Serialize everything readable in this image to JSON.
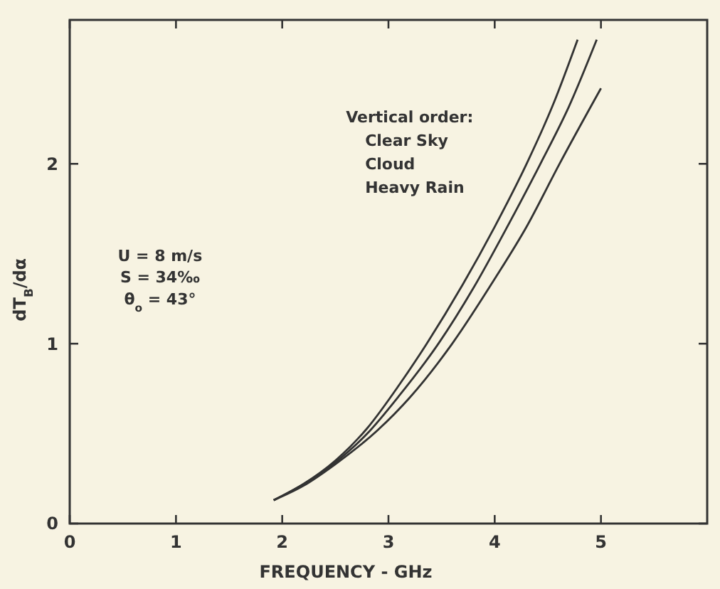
{
  "chart_data": {
    "type": "line",
    "xlabel": "FREQUENCY - GHz",
    "ylabel": "dT$_{B}$/dα",
    "xlim": [
      0,
      6
    ],
    "ylim": [
      0,
      2.8
    ],
    "xticks": [
      0,
      1,
      2,
      3,
      4,
      5
    ],
    "yticks": [
      0,
      1,
      2
    ],
    "grid": false,
    "marker": "none",
    "line_style": "solid",
    "series": [
      {
        "color": "#333333",
        "x": [
          1.92,
          2.2,
          2.5,
          2.8,
          3.1,
          3.36,
          3.7,
          4.0,
          4.3,
          4.55,
          4.78
        ],
        "values": [
          0.13,
          0.22,
          0.35,
          0.53,
          0.77,
          1.0,
          1.33,
          1.65,
          2.0,
          2.33,
          2.69
        ]
      },
      {
        "color": "#333333",
        "x": [
          1.92,
          2.2,
          2.5,
          2.8,
          3.1,
          3.47,
          3.8,
          4.1,
          4.43,
          4.7,
          4.96
        ],
        "values": [
          0.13,
          0.22,
          0.34,
          0.5,
          0.71,
          1.0,
          1.31,
          1.63,
          2.0,
          2.32,
          2.69
        ]
      },
      {
        "color": "#333333",
        "x": [
          1.92,
          2.2,
          2.5,
          2.9,
          3.2,
          3.6,
          4.0,
          4.3,
          4.61,
          5.0
        ],
        "values": [
          0.13,
          0.21,
          0.33,
          0.52,
          0.7,
          1.0,
          1.36,
          1.65,
          2.0,
          2.42
        ]
      }
    ],
    "annotations": [
      "Vertical order:",
      "Clear Sky",
      "Cloud",
      "Heavy Rain",
      "U = 8 m/s",
      "S = 34‰",
      "θ$_{o}$ = 43°"
    ]
  }
}
